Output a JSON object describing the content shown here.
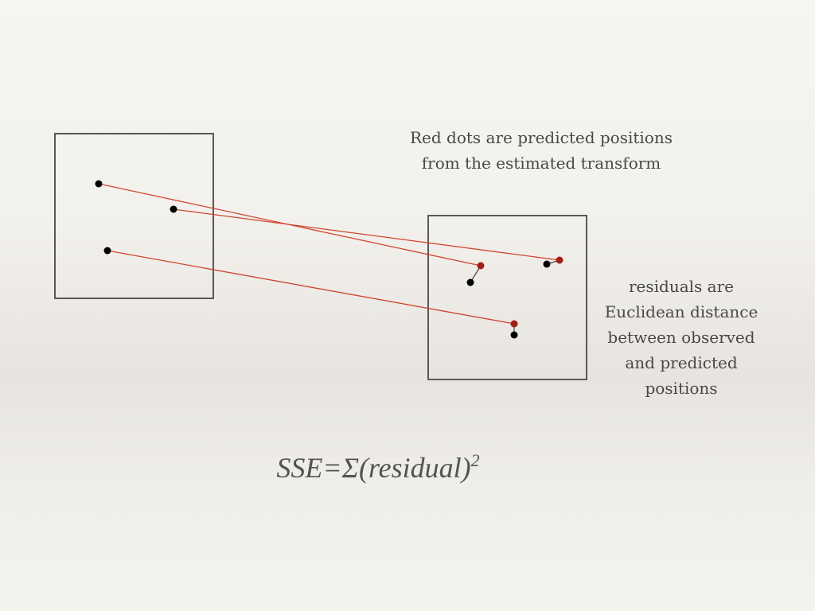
{
  "colors": {
    "predicted_dot": "#a31f12",
    "observed_dot": "#000000",
    "link_line": "#d0442f",
    "frame": "#5a5854",
    "text": "#4a4846"
  },
  "annotations": {
    "red_dots_note": "Red dots are predicted positions from the estimated transform",
    "residuals_note": "residuals are Euclidean distance between observed and predicted positions"
  },
  "formula": {
    "main": "SSE=Σ(residual)",
    "exponent": "2"
  }
}
